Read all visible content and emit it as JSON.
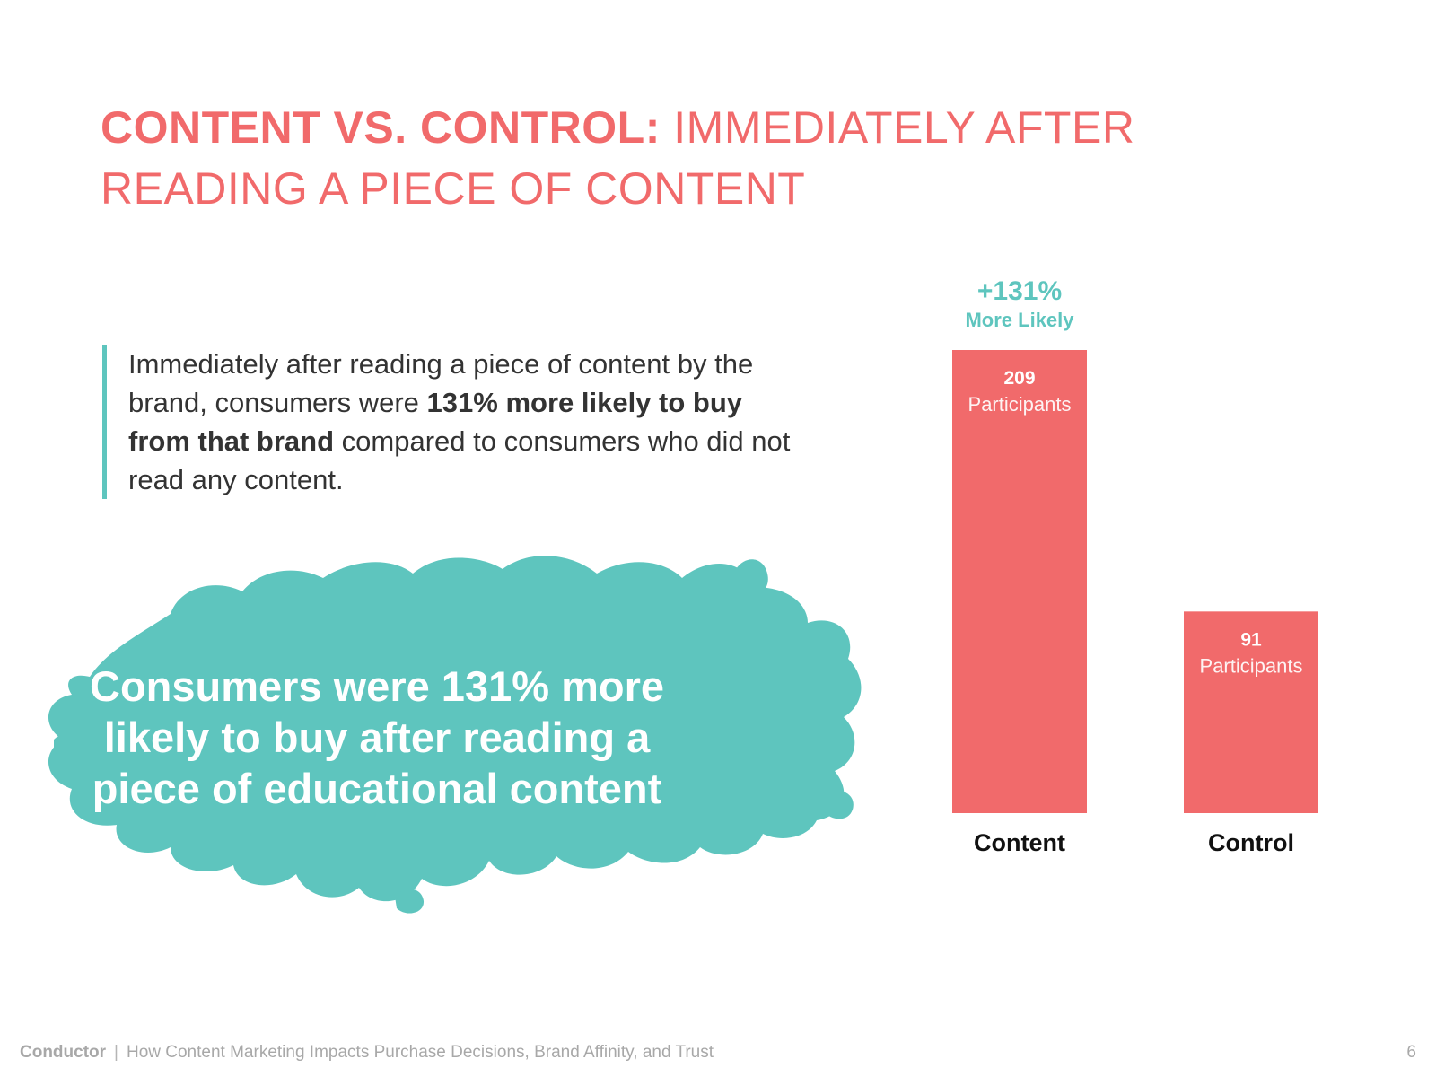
{
  "title": {
    "bold": "CONTENT VS. CONTROL:",
    "light": "IMMEDIATELY AFTER READING A PIECE OF CONTENT"
  },
  "body": {
    "part1": "Immediately after reading a piece of content by the brand, consumers were ",
    "bold": "131% more likely to buy from that brand",
    "part2": " compared to consumers who did not read any content."
  },
  "callout": "Consumers were 131% more likely to buy after reading a piece of educational content",
  "chart_data": {
    "type": "bar",
    "categories": [
      "Content",
      "Control"
    ],
    "values": [
      209,
      91
    ],
    "value_unit": "Participants",
    "bar_color": "#f16a6b",
    "annotation": {
      "value": "+131%",
      "label": "More Likely",
      "color": "#5ec5be",
      "target": "Content"
    },
    "ylim": [
      0,
      209
    ],
    "grid": false
  },
  "footer": {
    "brand": "Conductor",
    "separator": "|",
    "text": "How Content Marketing Impacts Purchase Decisions, Brand Affinity, and Trust",
    "page": "6"
  },
  "colors": {
    "accent": "#f16a6b",
    "teal": "#5ec5be",
    "text": "#333333"
  }
}
